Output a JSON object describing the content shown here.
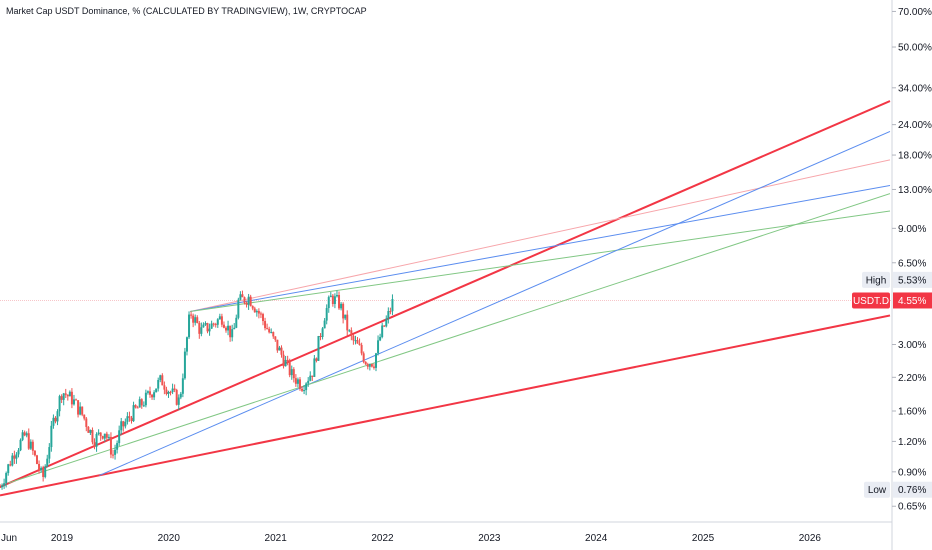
{
  "header": {
    "symbol_title": "Market Cap USDT Dominance, % (CALCULATED BY TRADINGVIEW), 1W, CRYPTOCAP"
  },
  "colors": {
    "up": "#26a69a",
    "down": "#ef5350",
    "channel": "#f23645",
    "channel_light": "#f7a6ab",
    "blue_line": "#5b8def",
    "green_line": "#81c784",
    "price_line": "#f7c6c9",
    "badge_bg": "#f23645",
    "hl_badge_bg": "#e9ecf3"
  },
  "badges": {
    "high_label": "High",
    "high_value": "5.53%",
    "current_label": "USDT.D",
    "current_value": "4.55%",
    "low_label": "Low",
    "low_value": "0.76%"
  },
  "chart_data": {
    "type": "candlestick",
    "title": "Market Cap USDT Dominance, % (CALCULATED BY TRADINGVIEW), 1W, CRYPTOCAP",
    "y_scale": "log",
    "y_ticks": [
      "70.00%",
      "50.00%",
      "34.00%",
      "24.00%",
      "18.00%",
      "13.00%",
      "9.00%",
      "6.50%",
      "3.00%",
      "2.20%",
      "1.60%",
      "1.20%",
      "0.90%",
      "0.65%"
    ],
    "x_ticks": [
      "Jun",
      "2019",
      "2020",
      "2021",
      "2022",
      "2023",
      "2024",
      "2025",
      "2026"
    ],
    "x_range": [
      2018.42,
      2026.75
    ],
    "y_range": [
      0.56,
      78
    ],
    "high": 5.53,
    "low": 0.76,
    "current": 4.55,
    "close_path": [
      [
        2018.42,
        0.78
      ],
      [
        2018.55,
        1.08
      ],
      [
        2018.66,
        1.28
      ],
      [
        2018.74,
        1.05
      ],
      [
        2018.82,
        0.84
      ],
      [
        2018.92,
        1.45
      ],
      [
        2019.0,
        1.93
      ],
      [
        2019.1,
        1.78
      ],
      [
        2019.2,
        1.52
      ],
      [
        2019.3,
        1.22
      ],
      [
        2019.4,
        1.33
      ],
      [
        2019.48,
        1.05
      ],
      [
        2019.55,
        1.35
      ],
      [
        2019.65,
        1.55
      ],
      [
        2019.75,
        1.72
      ],
      [
        2019.85,
        1.95
      ],
      [
        2019.93,
        2.15
      ],
      [
        2020.0,
        1.95
      ],
      [
        2020.1,
        1.75
      ],
      [
        2020.2,
        4.1
      ],
      [
        2020.3,
        3.4
      ],
      [
        2020.4,
        3.6
      ],
      [
        2020.5,
        3.9
      ],
      [
        2020.6,
        3.2
      ],
      [
        2020.65,
        4.5
      ],
      [
        2020.75,
        4.7
      ],
      [
        2020.85,
        4.0
      ],
      [
        2020.95,
        3.3
      ],
      [
        2021.05,
        2.75
      ],
      [
        2021.15,
        2.25
      ],
      [
        2021.25,
        2.05
      ],
      [
        2021.35,
        2.35
      ],
      [
        2021.45,
        3.9
      ],
      [
        2021.52,
        4.7
      ],
      [
        2021.6,
        4.4
      ],
      [
        2021.7,
        3.2
      ],
      [
        2021.78,
        2.9
      ],
      [
        2021.85,
        2.55
      ],
      [
        2021.92,
        2.55
      ],
      [
        2021.98,
        3.25
      ],
      [
        2022.05,
        3.9
      ],
      [
        2022.1,
        4.55
      ]
    ],
    "lines": [
      {
        "name": "channel-upper",
        "color": "#f23645",
        "width": 2,
        "p1": [
          2018.42,
          0.78
        ],
        "p2": [
          2026.75,
          30.0
        ]
      },
      {
        "name": "channel-lower",
        "color": "#f23645",
        "width": 2,
        "p1": [
          2018.42,
          0.72
        ],
        "p2": [
          2026.75,
          3.95
        ]
      },
      {
        "name": "red-thin",
        "color": "#f7a6ab",
        "width": 1,
        "p1": [
          2020.2,
          4.1
        ],
        "p2": [
          2026.75,
          17.2
        ]
      },
      {
        "name": "blue-upper",
        "color": "#5b8def",
        "width": 1,
        "p1": [
          2020.2,
          4.1
        ],
        "p2": [
          2026.75,
          13.5
        ]
      },
      {
        "name": "green-upper",
        "color": "#81c784",
        "width": 1,
        "p1": [
          2020.2,
          4.1
        ],
        "p2": [
          2026.75,
          10.6
        ]
      },
      {
        "name": "blue-lower",
        "color": "#5b8def",
        "width": 1,
        "p1": [
          2019.35,
          0.87
        ],
        "p2": [
          2026.75,
          22.5
        ]
      },
      {
        "name": "green-lower",
        "color": "#81c784",
        "width": 1,
        "p1": [
          2018.5,
          0.81
        ],
        "p2": [
          2026.75,
          12.5
        ]
      }
    ]
  }
}
